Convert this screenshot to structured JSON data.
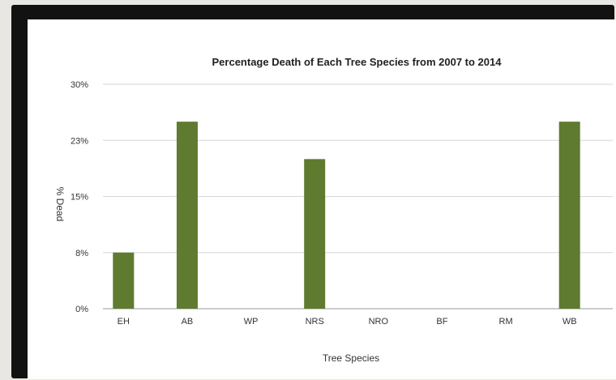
{
  "chart_data": {
    "type": "bar",
    "title": "Percentage Death of Each Tree Species from 2007 to 2014",
    "xlabel": "Tree Species",
    "ylabel": "% Dead",
    "categories": [
      "EH",
      "AB",
      "WP",
      "NRS",
      "NRO",
      "BF",
      "RM",
      "WB"
    ],
    "values": [
      0.075,
      0.25,
      0,
      0.2,
      0,
      0,
      0,
      0.25
    ],
    "ylim": [
      0,
      0.3
    ],
    "yticks": [
      0,
      0.075,
      0.15,
      0.225,
      0.3
    ],
    "ytick_labels": [
      "0%",
      "8%",
      "15%",
      "23%",
      "30%"
    ],
    "grid": true,
    "bar_color": "#5e7b2f",
    "grid_color": "#d6d6d6"
  }
}
